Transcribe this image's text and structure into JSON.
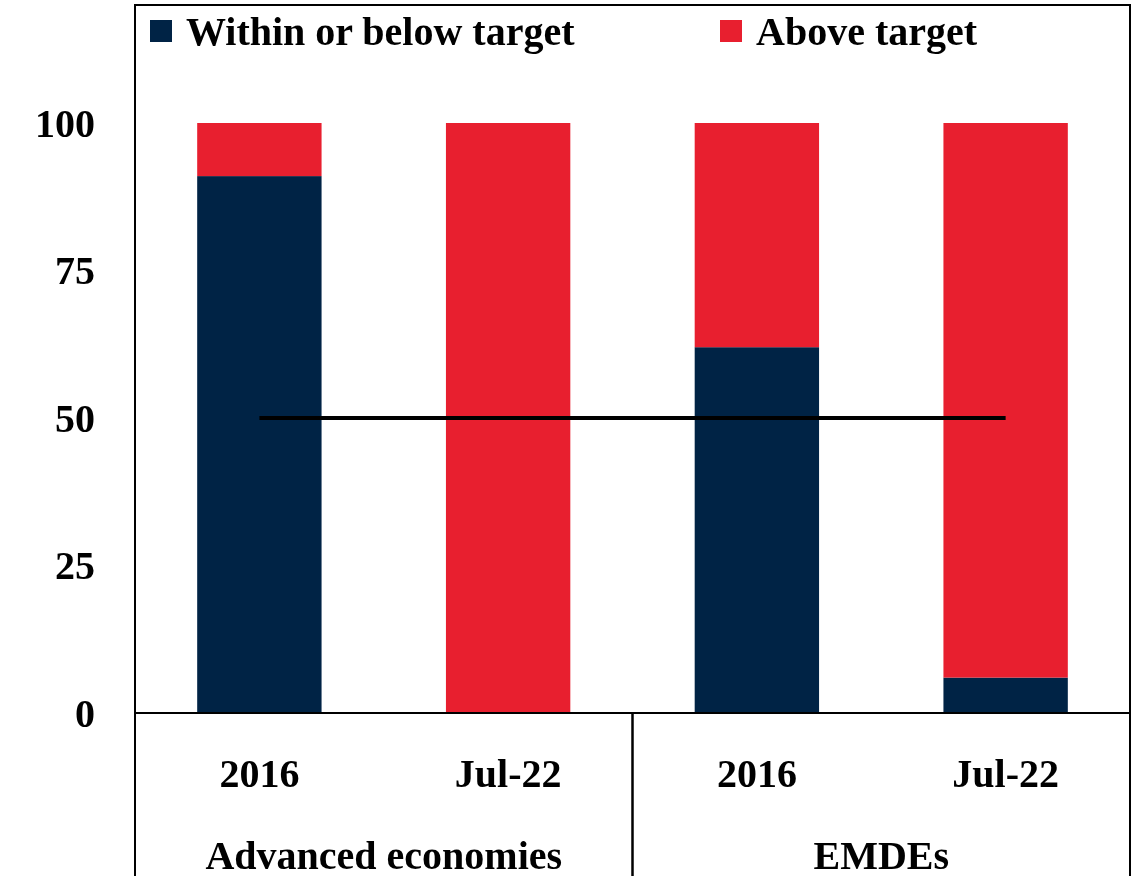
{
  "chart_data": {
    "type": "bar",
    "stacked": true,
    "categories": [
      "2016",
      "Jul-22",
      "2016",
      "Jul-22"
    ],
    "series": [
      {
        "name": "Within or below target",
        "color": "#002345",
        "values": [
          91,
          0,
          62,
          6
        ]
      },
      {
        "name": "Above target",
        "color": "#e81f2f",
        "values": [
          9,
          100,
          38,
          94
        ]
      }
    ],
    "ylim": [
      0,
      120
    ],
    "yticks": [
      0,
      25,
      50,
      75,
      100
    ],
    "ref_lines": [
      {
        "axis": "y",
        "value": 50,
        "color": "#000000"
      }
    ],
    "annotations": [
      "Advanced economies",
      "EMDEs"
    ],
    "legend": "top",
    "grid": false
  }
}
